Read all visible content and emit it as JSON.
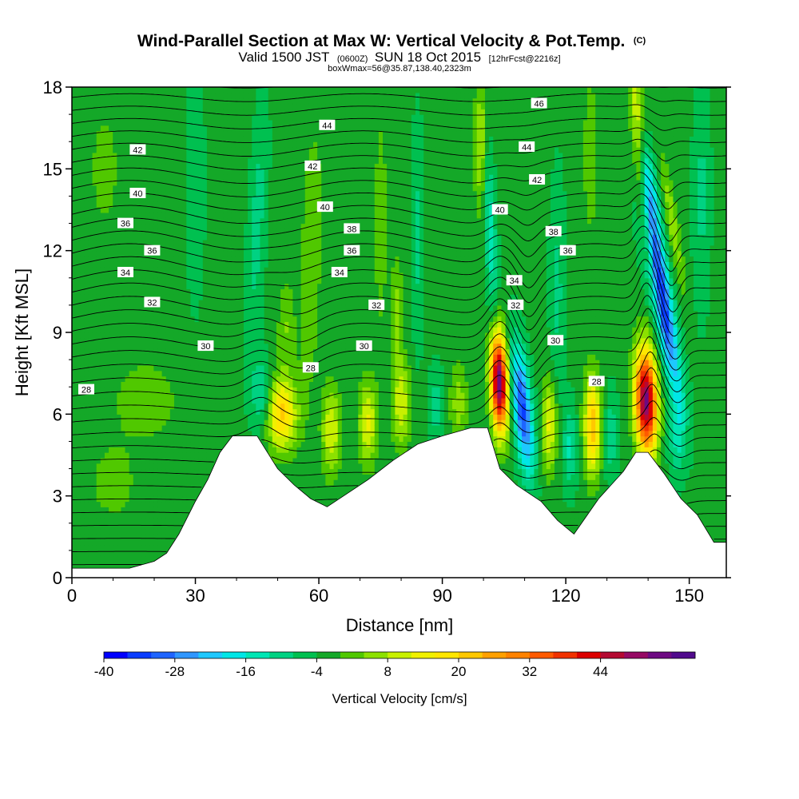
{
  "title": {
    "main": "Wind-Parallel Section at Max W: Vertical Velocity & Pot.Temp.",
    "copyright": "(C)",
    "valid_prefix": "Valid 1500 JST",
    "valid_z": "(0600Z)",
    "valid_date": "SUN 18 Oct 2015",
    "forecast": "[12hrFcst@2216z]",
    "box_info": "boxWmax=56@35.87,138.40,2323m"
  },
  "chart_data": {
    "type": "heatmap",
    "xlabel": "Distance [nm]",
    "ylabel": "Height [Kft MSL]",
    "xlim": [
      0,
      159
    ],
    "ylim": [
      0,
      18
    ],
    "x_ticks": [
      0,
      30,
      60,
      90,
      120,
      150
    ],
    "y_ticks": [
      0,
      3,
      6,
      9,
      12,
      15,
      18
    ],
    "terrain": [
      [
        0,
        0.35
      ],
      [
        14,
        0.35
      ],
      [
        20,
        0.6
      ],
      [
        23,
        0.9
      ],
      [
        26,
        1.6
      ],
      [
        30,
        2.8
      ],
      [
        33,
        3.6
      ],
      [
        36,
        4.6
      ],
      [
        39,
        5.2
      ],
      [
        45,
        5.2
      ],
      [
        50,
        4.0
      ],
      [
        54,
        3.4
      ],
      [
        58,
        2.9
      ],
      [
        62,
        2.6
      ],
      [
        66,
        3.0
      ],
      [
        72,
        3.6
      ],
      [
        78,
        4.3
      ],
      [
        84,
        4.9
      ],
      [
        90,
        5.2
      ],
      [
        97,
        5.5
      ],
      [
        101,
        5.5
      ],
      [
        104,
        4.0
      ],
      [
        108,
        3.4
      ],
      [
        114,
        2.8
      ],
      [
        118,
        2.1
      ],
      [
        122,
        1.6
      ],
      [
        128,
        2.9
      ],
      [
        134,
        3.9
      ],
      [
        137,
        4.6
      ],
      [
        140,
        4.6
      ],
      [
        144,
        3.8
      ],
      [
        148,
        2.9
      ],
      [
        152,
        2.3
      ],
      [
        156,
        1.3
      ],
      [
        159,
        1.3
      ]
    ],
    "background_w": -3,
    "w_features": [
      {
        "x": 103.8,
        "z": 7.2,
        "sx": 2.0,
        "sz": 1.8,
        "amp": 60,
        "tilt": -0.2
      },
      {
        "x": 139.5,
        "z": 6.5,
        "sx": 2.6,
        "sz": 1.9,
        "amp": 56,
        "tilt": -0.15
      },
      {
        "x": 109.5,
        "z": 6.2,
        "sx": 2.2,
        "sz": 2.3,
        "amp": -30,
        "tilt": -0.6
      },
      {
        "x": 143.2,
        "z": 10.2,
        "sx": 2.4,
        "sz": 3.2,
        "amp": -34,
        "tilt": -1.1
      },
      {
        "x": 140.0,
        "z": 14.5,
        "sx": 1.8,
        "sz": 2.5,
        "amp": -18,
        "tilt": -1.0
      },
      {
        "x": 51.0,
        "z": 6.0,
        "sx": 3.5,
        "sz": 1.3,
        "amp": 24,
        "tilt": 0
      },
      {
        "x": 46.0,
        "z": 6.8,
        "sx": 2.5,
        "sz": 1.3,
        "amp": -10,
        "tilt": 0
      },
      {
        "x": 63.0,
        "z": 5.4,
        "sx": 2.2,
        "sz": 1.6,
        "amp": 15,
        "tilt": 0
      },
      {
        "x": 72.0,
        "z": 5.7,
        "sx": 2.2,
        "sz": 1.5,
        "amp": 16,
        "tilt": 0
      },
      {
        "x": 80.0,
        "z": 6.4,
        "sx": 2.2,
        "sz": 1.6,
        "amp": 14,
        "tilt": 0
      },
      {
        "x": 88.5,
        "z": 6.3,
        "sx": 1.7,
        "sz": 1.4,
        "amp": -7,
        "tilt": 0
      },
      {
        "x": 94.0,
        "z": 6.4,
        "sx": 2.2,
        "sz": 1.5,
        "amp": 9,
        "tilt": 0
      },
      {
        "x": 116.0,
        "z": 5.6,
        "sx": 1.8,
        "sz": 1.7,
        "amp": 16,
        "tilt": 0
      },
      {
        "x": 121.0,
        "z": 4.8,
        "sx": 1.6,
        "sz": 1.5,
        "amp": -10,
        "tilt": 0
      },
      {
        "x": 126.5,
        "z": 5.6,
        "sx": 2.0,
        "sz": 1.8,
        "amp": 26,
        "tilt": 0
      },
      {
        "x": 131.0,
        "z": 5.2,
        "sx": 1.6,
        "sz": 1.6,
        "amp": -8,
        "tilt": 0
      },
      {
        "x": 147.0,
        "z": 5.3,
        "sx": 2.0,
        "sz": 1.6,
        "amp": -10,
        "tilt": 0
      },
      {
        "x": 101.5,
        "z": 13.0,
        "sx": 1.4,
        "sz": 4.0,
        "amp": -12,
        "tilt": -0.3
      },
      {
        "x": 99.5,
        "z": 16.0,
        "sx": 1.6,
        "sz": 2.5,
        "amp": 14,
        "tilt": 0
      },
      {
        "x": 137.5,
        "z": 16.5,
        "sx": 1.6,
        "sz": 2.5,
        "amp": 20,
        "tilt": -0.5
      },
      {
        "x": 140.5,
        "z": 11.5,
        "sx": 1.3,
        "sz": 2.5,
        "amp": 12,
        "tilt": -1.0
      },
      {
        "x": 146.0,
        "z": 13.0,
        "sx": 1.4,
        "sz": 2.5,
        "amp": 10,
        "tilt": -1.0
      },
      {
        "x": 58.0,
        "z": 11.5,
        "sx": 2.5,
        "sz": 5.0,
        "amp": 7,
        "tilt": 0.2
      },
      {
        "x": 45.0,
        "z": 13.0,
        "sx": 2.0,
        "sz": 4.0,
        "amp": -7,
        "tilt": 0.3
      },
      {
        "x": 52.0,
        "z": 9.2,
        "sx": 2.0,
        "sz": 1.8,
        "amp": 7,
        "tilt": 0
      },
      {
        "x": 30.0,
        "z": 14.5,
        "sx": 2.0,
        "sz": 4.0,
        "amp": -5,
        "tilt": 0
      },
      {
        "x": 75.0,
        "z": 13.0,
        "sx": 1.6,
        "sz": 4.0,
        "amp": 6,
        "tilt": 0
      },
      {
        "x": 79.0,
        "z": 9.8,
        "sx": 1.5,
        "sz": 2.0,
        "amp": 8,
        "tilt": 0
      },
      {
        "x": 84.0,
        "z": 12.5,
        "sx": 1.4,
        "sz": 4.0,
        "amp": -6,
        "tilt": 0
      },
      {
        "x": 118.0,
        "z": 10.5,
        "sx": 1.8,
        "sz": 4.0,
        "amp": -6,
        "tilt": 0
      },
      {
        "x": 126.0,
        "z": 15.5,
        "sx": 1.8,
        "sz": 3.0,
        "amp": 6,
        "tilt": 0
      },
      {
        "x": 153.0,
        "z": 14.0,
        "sx": 2.0,
        "sz": 4.0,
        "amp": -6,
        "tilt": 0
      },
      {
        "x": 10.0,
        "z": 3.5,
        "sx": 6.0,
        "sz": 1.5,
        "amp": 5,
        "tilt": 0
      },
      {
        "x": 18.0,
        "z": 6.5,
        "sx": 8.0,
        "sz": 1.5,
        "amp": 6,
        "tilt": 0
      },
      {
        "x": 8.0,
        "z": 15.0,
        "sx": 5.0,
        "sz": 3.0,
        "amp": 4,
        "tilt": 0
      }
    ],
    "theta_levels": [
      27,
      27.5,
      28,
      28.5,
      29,
      29.5,
      30,
      30.5,
      31,
      31.5,
      32,
      32.5,
      33,
      33.5,
      34,
      34.5,
      35,
      35.5,
      36,
      36.5,
      37,
      37.5,
      38,
      38.5,
      39,
      39.5,
      40,
      40.5,
      41,
      41.5,
      42,
      42.5,
      43,
      43.5,
      44,
      44.5,
      45,
      45.5,
      46
    ],
    "contour_labels": [
      {
        "value": "28",
        "x": 3.5,
        "z": 6.9
      },
      {
        "value": "30",
        "x": 32.5,
        "z": 8.5
      },
      {
        "value": "32",
        "x": 19.5,
        "z": 10.1
      },
      {
        "value": "34",
        "x": 13.0,
        "z": 11.2
      },
      {
        "value": "36",
        "x": 19.5,
        "z": 12.0
      },
      {
        "value": "36",
        "x": 13.0,
        "z": 13.0
      },
      {
        "value": "40",
        "x": 16.0,
        "z": 14.1
      },
      {
        "value": "42",
        "x": 16.0,
        "z": 15.7
      },
      {
        "value": "44",
        "x": 62.0,
        "z": 16.6
      },
      {
        "value": "42",
        "x": 58.5,
        "z": 15.1
      },
      {
        "value": "40",
        "x": 61.5,
        "z": 13.6
      },
      {
        "value": "38",
        "x": 68.0,
        "z": 12.8
      },
      {
        "value": "36",
        "x": 68.0,
        "z": 12.0
      },
      {
        "value": "34",
        "x": 65.0,
        "z": 11.2
      },
      {
        "value": "32",
        "x": 74.0,
        "z": 10.0
      },
      {
        "value": "30",
        "x": 71.0,
        "z": 8.5
      },
      {
        "value": "28",
        "x": 58.0,
        "z": 7.7
      },
      {
        "value": "40",
        "x": 104.0,
        "z": 13.5
      },
      {
        "value": "34",
        "x": 107.5,
        "z": 10.9
      },
      {
        "value": "32",
        "x": 107.8,
        "z": 10.0
      },
      {
        "value": "30",
        "x": 117.5,
        "z": 8.7
      },
      {
        "value": "28",
        "x": 127.5,
        "z": 7.2
      },
      {
        "value": "36",
        "x": 120.5,
        "z": 12.0
      },
      {
        "value": "38",
        "x": 117.0,
        "z": 12.7
      },
      {
        "value": "42",
        "x": 113.0,
        "z": 14.6
      },
      {
        "value": "44",
        "x": 110.5,
        "z": 15.8
      },
      {
        "value": "46",
        "x": 113.5,
        "z": 17.4
      }
    ]
  },
  "colorbar": {
    "title": "Vertical Velocity [cm/s]",
    "min": -40,
    "step": 4,
    "colors": [
      "#0000ff",
      "#0a3cff",
      "#1e64ff",
      "#2f96ff",
      "#1ec8ff",
      "#00e6e6",
      "#00e6b4",
      "#00d282",
      "#00c050",
      "#14a828",
      "#50c800",
      "#8ce100",
      "#c8f000",
      "#f0f000",
      "#ffe600",
      "#ffc800",
      "#ffa000",
      "#ff8200",
      "#ff5a00",
      "#f03200",
      "#dc0000",
      "#b40a32",
      "#960a64",
      "#6e0a82",
      "#500a8c"
    ],
    "tick_values": [
      -40,
      -28,
      -16,
      -4,
      8,
      20,
      32,
      44
    ],
    "tick_labels": [
      "-40",
      "-28",
      "-16",
      "-4",
      "8",
      "20",
      "32",
      "44"
    ]
  }
}
